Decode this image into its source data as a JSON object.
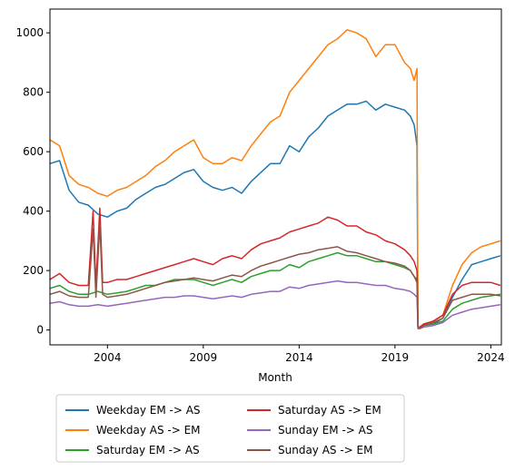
{
  "chart_data": {
    "type": "line",
    "title": "",
    "xlabel": "Month",
    "ylabel": "",
    "xlim": [
      2001.0,
      2024.55
    ],
    "ylim": [
      -50,
      1080
    ],
    "x_ticks": [
      2004,
      2009,
      2014,
      2019,
      2024
    ],
    "x_tick_labels": [
      "2004",
      "2009",
      "2014",
      "2019",
      "2024"
    ],
    "y_ticks": [
      0,
      200,
      400,
      600,
      800,
      1000
    ],
    "y_tick_labels": [
      "0",
      "200",
      "400",
      "600",
      "800",
      "1000"
    ],
    "grid": false,
    "legend_position": "below-center",
    "series": [
      {
        "name": "Weekday EM -> AS",
        "color": "#1f77b4",
        "x": [
          2001.0,
          2001.5,
          2002.0,
          2002.5,
          2003.0,
          2003.5,
          2004.0,
          2004.5,
          2005.0,
          2005.5,
          2006.0,
          2006.5,
          2007.0,
          2007.5,
          2008.0,
          2008.5,
          2009.0,
          2009.5,
          2010.0,
          2010.5,
          2011.0,
          2011.5,
          2012.0,
          2012.5,
          2013.0,
          2013.5,
          2014.0,
          2014.5,
          2015.0,
          2015.5,
          2016.0,
          2016.5,
          2017.0,
          2017.5,
          2018.0,
          2018.5,
          2019.0,
          2019.5,
          2019.8,
          2020.0,
          2020.15,
          2020.2,
          2020.3,
          2020.5,
          2021.0,
          2021.5,
          2022.0,
          2022.5,
          2023.0,
          2023.5,
          2024.0,
          2024.5
        ],
        "values": [
          560,
          570,
          470,
          430,
          420,
          390,
          380,
          400,
          410,
          440,
          460,
          480,
          490,
          510,
          530,
          540,
          500,
          480,
          470,
          480,
          460,
          500,
          530,
          560,
          560,
          620,
          600,
          650,
          680,
          720,
          740,
          760,
          760,
          770,
          740,
          760,
          750,
          740,
          720,
          690,
          620,
          10,
          10,
          20,
          20,
          40,
          110,
          170,
          220,
          230,
          240,
          250
        ]
      },
      {
        "name": "Weekday AS -> EM",
        "color": "#ff7f0e",
        "x": [
          2001.0,
          2001.5,
          2002.0,
          2002.5,
          2003.0,
          2003.5,
          2004.0,
          2004.5,
          2005.0,
          2005.5,
          2006.0,
          2006.5,
          2007.0,
          2007.5,
          2008.0,
          2008.5,
          2009.0,
          2009.5,
          2010.0,
          2010.5,
          2011.0,
          2011.5,
          2012.0,
          2012.5,
          2013.0,
          2013.5,
          2014.0,
          2014.5,
          2015.0,
          2015.5,
          2016.0,
          2016.5,
          2017.0,
          2017.5,
          2018.0,
          2018.5,
          2019.0,
          2019.5,
          2019.8,
          2020.0,
          2020.15,
          2020.2,
          2020.3,
          2020.5,
          2021.0,
          2021.5,
          2022.0,
          2022.5,
          2023.0,
          2023.5,
          2024.0,
          2024.5
        ],
        "values": [
          640,
          620,
          520,
          490,
          480,
          460,
          450,
          470,
          480,
          500,
          520,
          550,
          570,
          600,
          620,
          640,
          580,
          560,
          560,
          580,
          570,
          620,
          660,
          700,
          720,
          800,
          840,
          880,
          920,
          960,
          980,
          1010,
          1000,
          980,
          920,
          960,
          960,
          900,
          880,
          840,
          880,
          10,
          10,
          20,
          30,
          50,
          150,
          220,
          260,
          280,
          290,
          300
        ]
      },
      {
        "name": "Saturday EM -> AS",
        "color": "#2ca02c",
        "x": [
          2001.0,
          2001.5,
          2002.0,
          2002.5,
          2003.0,
          2003.5,
          2004.0,
          2004.5,
          2005.0,
          2005.5,
          2006.0,
          2006.5,
          2007.0,
          2007.5,
          2008.0,
          2008.5,
          2009.0,
          2009.5,
          2010.0,
          2010.5,
          2011.0,
          2011.5,
          2012.0,
          2012.5,
          2013.0,
          2013.5,
          2014.0,
          2014.5,
          2015.0,
          2015.5,
          2016.0,
          2016.5,
          2017.0,
          2017.5,
          2018.0,
          2018.5,
          2019.0,
          2019.5,
          2019.8,
          2020.0,
          2020.15,
          2020.2,
          2020.3,
          2020.5,
          2021.0,
          2021.5,
          2022.0,
          2022.5,
          2023.0,
          2023.5,
          2024.0,
          2024.5
        ],
        "values": [
          140,
          150,
          130,
          120,
          120,
          130,
          120,
          125,
          130,
          140,
          150,
          150,
          160,
          170,
          170,
          170,
          160,
          150,
          160,
          170,
          160,
          180,
          190,
          200,
          200,
          220,
          210,
          230,
          240,
          250,
          260,
          250,
          250,
          240,
          230,
          230,
          220,
          210,
          200,
          180,
          170,
          10,
          10,
          15,
          20,
          30,
          70,
          90,
          100,
          110,
          115,
          120
        ]
      },
      {
        "name": "Saturday AS -> EM",
        "color": "#d62728",
        "x": [
          2001.0,
          2001.5,
          2002.0,
          2002.5,
          2003.0,
          2003.25,
          2003.4,
          2003.6,
          2003.75,
          2004.0,
          2004.5,
          2005.0,
          2005.5,
          2006.0,
          2006.5,
          2007.0,
          2007.5,
          2008.0,
          2008.5,
          2009.0,
          2009.5,
          2010.0,
          2010.5,
          2011.0,
          2011.5,
          2012.0,
          2012.5,
          2013.0,
          2013.5,
          2014.0,
          2014.5,
          2015.0,
          2015.5,
          2016.0,
          2016.5,
          2017.0,
          2017.5,
          2018.0,
          2018.5,
          2019.0,
          2019.5,
          2019.8,
          2020.0,
          2020.15,
          2020.2,
          2020.3,
          2020.5,
          2021.0,
          2021.5,
          2022.0,
          2022.5,
          2023.0,
          2023.5,
          2024.0,
          2024.5
        ],
        "values": [
          170,
          190,
          160,
          150,
          150,
          400,
          150,
          410,
          160,
          160,
          170,
          170,
          180,
          190,
          200,
          210,
          220,
          230,
          240,
          230,
          220,
          240,
          250,
          240,
          270,
          290,
          300,
          310,
          330,
          340,
          350,
          360,
          380,
          370,
          350,
          350,
          330,
          320,
          300,
          290,
          270,
          250,
          230,
          200,
          10,
          10,
          20,
          30,
          50,
          120,
          150,
          160,
          160,
          160,
          150
        ]
      },
      {
        "name": "Sunday EM -> AS",
        "color": "#9467bd",
        "x": [
          2001.0,
          2001.5,
          2002.0,
          2002.5,
          2003.0,
          2003.5,
          2004.0,
          2004.5,
          2005.0,
          2005.5,
          2006.0,
          2006.5,
          2007.0,
          2007.5,
          2008.0,
          2008.5,
          2009.0,
          2009.5,
          2010.0,
          2010.5,
          2011.0,
          2011.5,
          2012.0,
          2012.5,
          2013.0,
          2013.5,
          2014.0,
          2014.5,
          2015.0,
          2015.5,
          2016.0,
          2016.5,
          2017.0,
          2017.5,
          2018.0,
          2018.5,
          2019.0,
          2019.5,
          2019.8,
          2020.0,
          2020.15,
          2020.2,
          2020.3,
          2020.5,
          2021.0,
          2021.5,
          2022.0,
          2022.5,
          2023.0,
          2023.5,
          2024.0,
          2024.5
        ],
        "values": [
          90,
          95,
          85,
          80,
          80,
          85,
          80,
          85,
          90,
          95,
          100,
          105,
          110,
          110,
          115,
          115,
          110,
          105,
          110,
          115,
          110,
          120,
          125,
          130,
          130,
          145,
          140,
          150,
          155,
          160,
          165,
          160,
          160,
          155,
          150,
          150,
          140,
          135,
          130,
          120,
          110,
          5,
          5,
          10,
          15,
          25,
          50,
          60,
          70,
          75,
          80,
          85
        ]
      },
      {
        "name": "Sunday AS -> EM",
        "color": "#8c564b",
        "x": [
          2001.0,
          2001.5,
          2002.0,
          2002.5,
          2003.0,
          2003.25,
          2003.4,
          2003.6,
          2003.75,
          2004.0,
          2004.5,
          2005.0,
          2005.5,
          2006.0,
          2006.5,
          2007.0,
          2007.5,
          2008.0,
          2008.5,
          2009.0,
          2009.5,
          2010.0,
          2010.5,
          2011.0,
          2011.5,
          2012.0,
          2012.5,
          2013.0,
          2013.5,
          2014.0,
          2014.5,
          2015.0,
          2015.5,
          2016.0,
          2016.5,
          2017.0,
          2017.5,
          2018.0,
          2018.5,
          2019.0,
          2019.5,
          2019.8,
          2020.0,
          2020.15,
          2020.2,
          2020.3,
          2020.5,
          2021.0,
          2021.5,
          2022.0,
          2022.5,
          2023.0,
          2023.5,
          2024.0,
          2024.5
        ],
        "values": [
          120,
          130,
          115,
          110,
          110,
          340,
          110,
          360,
          120,
          110,
          115,
          120,
          130,
          140,
          150,
          160,
          165,
          170,
          175,
          170,
          165,
          175,
          185,
          180,
          200,
          215,
          225,
          235,
          245,
          255,
          260,
          270,
          275,
          280,
          265,
          260,
          250,
          240,
          230,
          225,
          215,
          200,
          180,
          160,
          5,
          5,
          15,
          25,
          40,
          100,
          110,
          120,
          120,
          120,
          115
        ]
      }
    ]
  }
}
